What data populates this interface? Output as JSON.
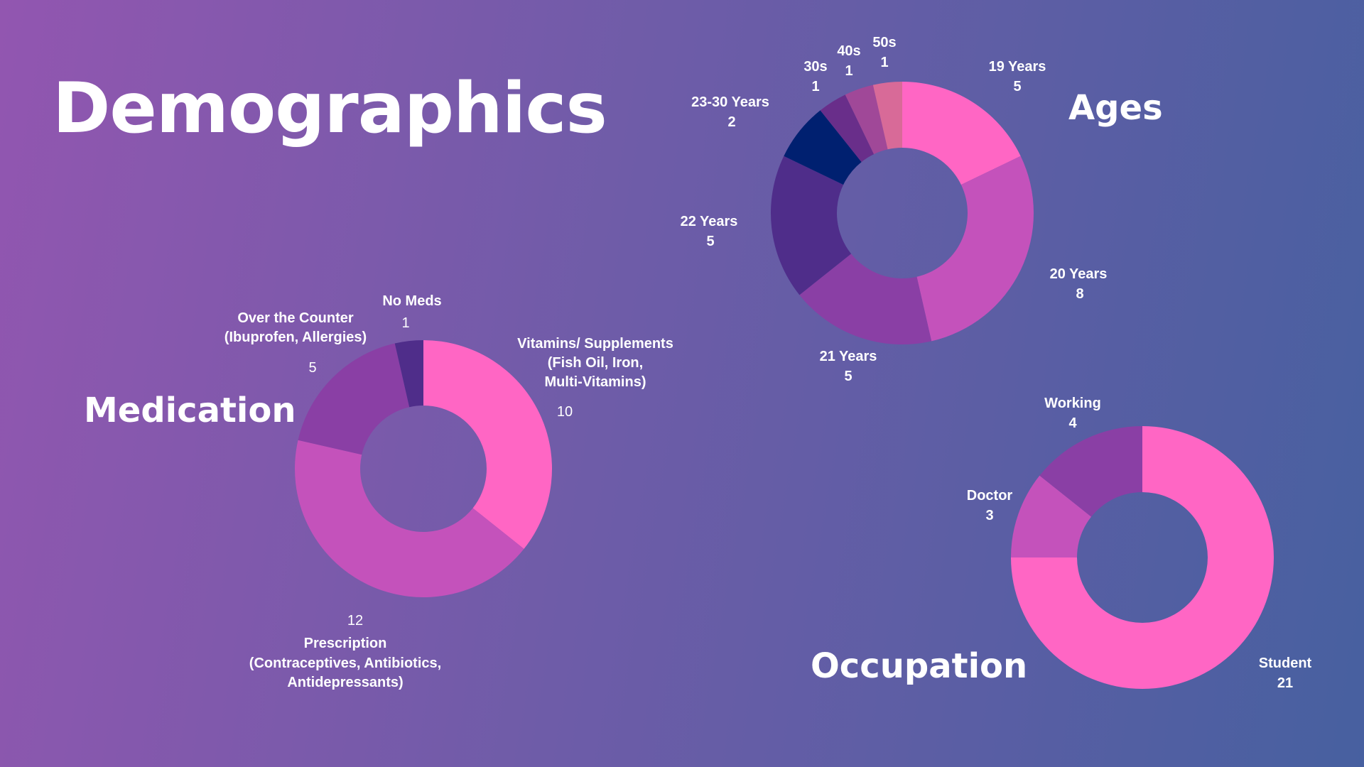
{
  "page": {
    "title": "Demographics"
  },
  "colors": {
    "background_start": "#9256b0",
    "background_end": "#4760a0",
    "pink": "#ff66c4",
    "magenta": "#c452bb",
    "purple": "#8a3fa5",
    "indigo": "#4f2d8a",
    "navy": "#002070",
    "plum": "#692e8a",
    "mauve": "#a04898",
    "rose": "#d86a98"
  },
  "chart_data": [
    {
      "type": "pie",
      "title": "Ages",
      "categories": [
        "19 Years",
        "20 Years",
        "21 Years",
        "22 Years",
        "23-30 Years",
        "30s",
        "40s",
        "50s"
      ],
      "values": [
        5,
        8,
        5,
        5,
        2,
        1,
        1,
        1
      ],
      "colors": [
        "#ff66c4",
        "#c452bb",
        "#8a3fa5",
        "#4f2d8a",
        "#002070",
        "#692e8a",
        "#a04898",
        "#d86a98"
      ]
    },
    {
      "type": "pie",
      "title": "Medication",
      "categories": [
        "Vitamins/ Supplements (Fish Oil, Iron, Multi-Vitamins)",
        "Prescription (Contraceptives, Antibiotics, Antidepressants)",
        "Over the Counter (Ibuprofen, Allergies)",
        "No Meds"
      ],
      "label_lines": [
        [
          "Vitamins/ Supplements",
          "(Fish Oil, Iron,",
          "Multi-Vitamins)"
        ],
        [
          "Prescription",
          "(Contraceptives, Antibiotics,",
          "Antidepressants)"
        ],
        [
          "Over the Counter",
          "(Ibuprofen, Allergies)"
        ],
        [
          "No Meds"
        ]
      ],
      "values": [
        10,
        12,
        5,
        1
      ],
      "colors": [
        "#ff66c4",
        "#c452bb",
        "#8a3fa5",
        "#4f2d8a"
      ]
    },
    {
      "type": "pie",
      "title": "Occupation",
      "categories": [
        "Student",
        "Doctor",
        "Working"
      ],
      "values": [
        21,
        3,
        4
      ],
      "colors": [
        "#ff66c4",
        "#c452bb",
        "#8a3fa5"
      ]
    }
  ]
}
